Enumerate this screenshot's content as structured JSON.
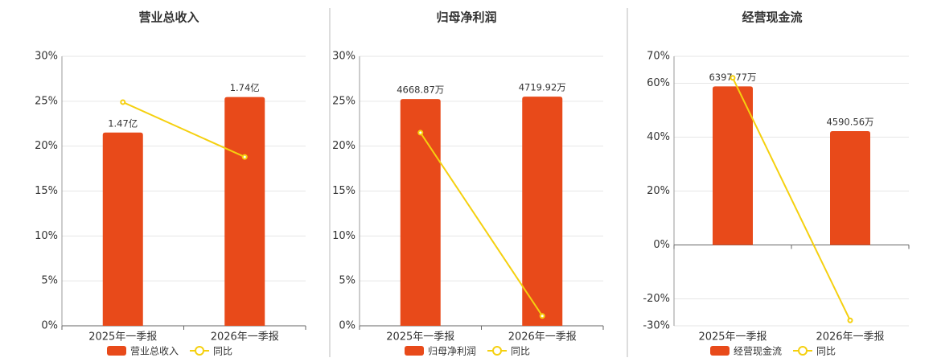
{
  "chart_data": [
    {
      "type": "bar",
      "title": "营业总收入",
      "categories": [
        "2025年一季报",
        "2026年一季报"
      ],
      "series": [
        {
          "name": "营业总收入",
          "color": "#e84a1a",
          "axis": "y2",
          "values": [
            1.47,
            1.74
          ],
          "value_labels": [
            "1.47亿",
            "1.74亿"
          ]
        },
        {
          "name": "同比",
          "type": "line",
          "color": "#f5d00f",
          "values": [
            24.9,
            18.8
          ]
        }
      ],
      "ylim": [
        0,
        30
      ],
      "yticks": [
        {
          "value": 0,
          "label": "0%"
        },
        {
          "value": 5,
          "label": "5%"
        },
        {
          "value": 10,
          "label": "10%"
        },
        {
          "value": 15,
          "label": "15%"
        },
        {
          "value": 20,
          "label": "20%"
        },
        {
          "value": 25,
          "label": "25%"
        },
        {
          "value": 30,
          "label": "30%"
        }
      ],
      "y2lim": [
        0,
        2.05
      ],
      "grid": true
    },
    {
      "type": "bar",
      "title": "归母净利润",
      "categories": [
        "2025年一季报",
        "2026年一季报"
      ],
      "series": [
        {
          "name": "归母净利润",
          "color": "#e84a1a",
          "axis": "y2",
          "values": [
            4668.87,
            4719.92
          ],
          "value_labels": [
            "4668.87万",
            "4719.92万"
          ]
        },
        {
          "name": "同比",
          "type": "line",
          "color": "#f5d00f",
          "values": [
            21.5,
            1.1
          ]
        }
      ],
      "ylim": [
        0,
        30
      ],
      "yticks": [
        {
          "value": 0,
          "label": "0%"
        },
        {
          "value": 5,
          "label": "5%"
        },
        {
          "value": 10,
          "label": "10%"
        },
        {
          "value": 15,
          "label": "15%"
        },
        {
          "value": 20,
          "label": "20%"
        },
        {
          "value": 25,
          "label": "25%"
        },
        {
          "value": 30,
          "label": "30%"
        }
      ],
      "y2lim": [
        0,
        5550
      ],
      "grid": true
    },
    {
      "type": "bar",
      "title": "经营现金流",
      "categories": [
        "2025年一季报",
        "2026年一季报"
      ],
      "series": [
        {
          "name": "经营现金流",
          "color": "#e84a1a",
          "axis": "y2",
          "values": [
            6397.77,
            4590.56
          ],
          "value_labels": [
            "6397.77万",
            "4590.56万"
          ]
        },
        {
          "name": "同比",
          "type": "line",
          "color": "#f5d00f",
          "values": [
            62,
            -28
          ]
        }
      ],
      "ylim": [
        -30,
        70
      ],
      "yticks": [
        {
          "value": -30,
          "label": "-30%"
        },
        {
          "value": -20,
          "label": "-20%"
        },
        {
          "value": 0,
          "label": "0%"
        },
        {
          "value": 20,
          "label": "20%"
        },
        {
          "value": 40,
          "label": "40%"
        },
        {
          "value": 60,
          "label": "60%"
        },
        {
          "value": 70,
          "label": "70%"
        }
      ],
      "y2lim": [
        -3260,
        7610
      ],
      "grid": true
    }
  ]
}
